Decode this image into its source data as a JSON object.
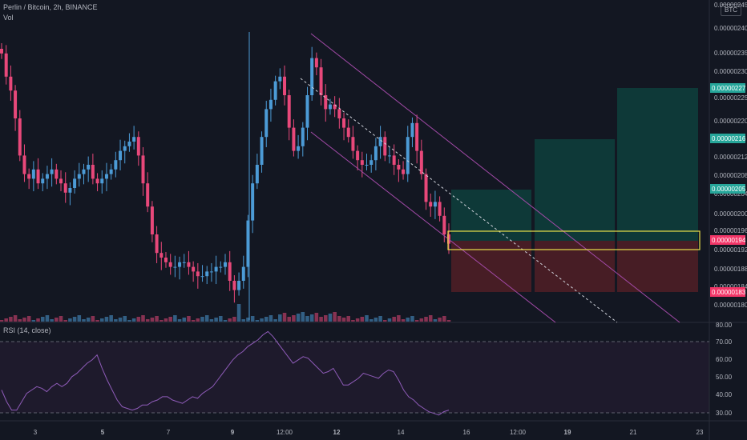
{
  "header": {
    "symbol_line": "Perlin / Bitcoin, 2h, BINANCE",
    "volume_label": "Vol",
    "currency_badge": "BTC"
  },
  "rsi_panel": {
    "label": "RSI (14, close)"
  },
  "colors": {
    "background": "#131722",
    "up": "#4c9bd6",
    "down": "#e8487a",
    "rsi_line": "#8e5bb8",
    "channel": "#a34aa8",
    "target_zone": "#0e3b3a",
    "stop_zone": "#4a1e26",
    "entry_box": "#e8e04a"
  },
  "price_axis": {
    "ticks": [
      "0.00000245",
      "0.00000240",
      "0.00000235",
      "0.00000230",
      "0.00000225",
      "0.00000220",
      "0.00000212",
      "0.00000208",
      "0.00000204",
      "0.00000200",
      "0.00000196",
      "0.00000192",
      "0.00000188",
      "0.00000184",
      "0.00000180"
    ],
    "badges": [
      {
        "label": "0.00000227",
        "color": "#26a69a"
      },
      {
        "label": "0.00000216",
        "color": "#26a69a"
      },
      {
        "label": "0.00000205",
        "color": "#26a69a"
      },
      {
        "label": "0.00000194",
        "color": "#f23668"
      },
      {
        "label": "0.00000183",
        "color": "#f23668"
      }
    ]
  },
  "rsi_axis": {
    "ticks": [
      "80.00",
      "70.00",
      "60.00",
      "50.00",
      "40.00",
      "30.00"
    ]
  },
  "time_axis": {
    "ticks": [
      "3",
      "5",
      "7",
      "9",
      "12:00",
      "12",
      "14",
      "16",
      "12:00",
      "19",
      "21",
      "23"
    ]
  },
  "chart_data": {
    "type": "candlestick",
    "title": "Perlin / Bitcoin, 2h, BINANCE",
    "ylabel": "",
    "ylim": [
      1.78e-06,
      2.46e-06
    ],
    "close_series": {
      "name": "",
      "values_satoshi_x100": [
        236,
        231,
        228,
        222,
        214,
        210,
        209,
        211,
        208,
        209,
        210,
        211,
        209,
        208,
        206,
        207,
        209,
        210,
        211,
        212,
        209,
        208,
        209,
        210,
        211,
        213,
        215,
        216,
        217,
        218,
        214,
        208,
        203,
        197,
        193,
        192,
        191,
        190,
        190,
        191,
        191,
        190,
        189,
        188,
        188,
        189,
        189,
        190,
        190,
        191,
        187,
        185,
        187,
        190,
        200,
        208,
        212,
        218,
        224,
        226,
        230,
        231,
        227,
        220,
        215,
        216,
        220,
        227,
        235,
        233,
        227,
        224,
        225,
        224,
        222,
        220,
        218,
        215,
        213,
        212,
        212,
        213,
        216,
        218,
        214,
        214,
        212,
        211,
        210,
        218,
        221,
        215,
        210,
        204,
        203,
        204,
        201,
        197,
        195
      ]
    },
    "rsi_series": {
      "name": "RSI (14, close)",
      "ylim": [
        25,
        82
      ],
      "values": [
        42,
        35,
        30,
        30,
        35,
        40,
        42,
        44,
        43,
        41,
        44,
        46,
        44,
        46,
        50,
        52,
        55,
        58,
        60,
        63,
        55,
        48,
        42,
        36,
        32,
        31,
        30,
        31,
        33,
        33,
        35,
        36,
        38,
        38,
        36,
        35,
        34,
        36,
        38,
        37,
        40,
        42,
        44,
        48,
        52,
        56,
        60,
        63,
        65,
        68,
        70,
        72,
        75,
        77,
        74,
        70,
        66,
        62,
        58,
        60,
        62,
        61,
        58,
        55,
        52,
        53,
        55,
        50,
        45,
        45,
        47,
        49,
        52,
        51,
        50,
        49,
        52,
        54,
        53,
        48,
        42,
        38,
        36,
        33,
        31,
        29,
        28,
        27,
        29,
        30
      ]
    },
    "zones": [
      {
        "name": "target-1",
        "top": 2.05e-06,
        "bottom": 1.94e-06
      },
      {
        "name": "target-2",
        "top": 2.16e-06,
        "bottom": 1.94e-06
      },
      {
        "name": "target-3",
        "top": 2.27e-06,
        "bottom": 1.94e-06
      },
      {
        "name": "stop",
        "top": 1.94e-06,
        "bottom": 1.83e-06
      }
    ],
    "entry_range": [
      1.92e-06,
      1.96e-06
    ],
    "rsi_levels": [
      70,
      30
    ],
    "grid": false
  }
}
